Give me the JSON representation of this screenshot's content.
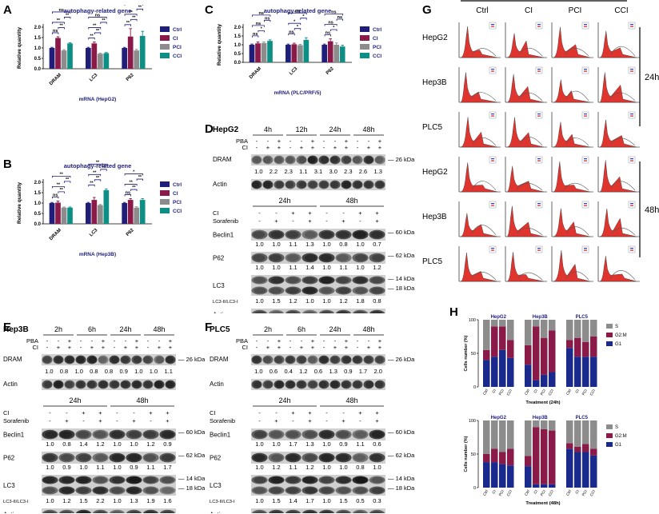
{
  "colors": {
    "ctrl": "#1f1f7a",
    "ci": "#8a1a48",
    "pci": "#8c8c8c",
    "cci": "#0e8f86",
    "bracket": "#1f1f7a",
    "flow_fill": "#e0342e",
    "s": "#8c8c8c",
    "g2m": "#8a1a48",
    "g1": "#1a2a8c"
  },
  "panel_labels": {
    "A": "A",
    "B": "B",
    "C": "C",
    "D": "D",
    "E": "E",
    "F": "F",
    "G": "G",
    "H": "H"
  },
  "legend": [
    "Ctrl",
    "CI",
    "PCI",
    "CCI"
  ],
  "bar_charts": [
    {
      "id": "A",
      "title": "autophagy-related gene",
      "ylabel": "Relative quantity",
      "xlabel": "mRNA (HepG2)",
      "ylim": [
        0,
        2.0
      ],
      "yticks": [
        "0.0",
        "0.5",
        "1.0",
        "1.5",
        "2.0"
      ],
      "categories": [
        "DRAM",
        "LC3",
        "P62"
      ],
      "series": [
        {
          "name": "Ctrl",
          "values": [
            1.0,
            1.0,
            1.0
          ]
        },
        {
          "name": "CI",
          "values": [
            1.48,
            1.22,
            1.55
          ]
        },
        {
          "name": "PCI",
          "values": [
            0.88,
            0.72,
            0.88
          ]
        },
        {
          "name": "CCI",
          "values": [
            1.22,
            0.75,
            1.58
          ]
        }
      ],
      "errors": [
        [
          0.03,
          0.03,
          0.03
        ],
        [
          0.06,
          0.07,
          0.38
        ],
        [
          0.04,
          0.03,
          0.05
        ],
        [
          0.03,
          0.03,
          0.22
        ]
      ],
      "sig": [
        [
          "ns",
          "**",
          "**",
          "**",
          "ns"
        ],
        [
          "**",
          "**",
          "**",
          "**",
          "ns"
        ],
        [
          "**",
          "**",
          "**",
          "**",
          "ns"
        ]
      ]
    },
    {
      "id": "B",
      "title": "autophagy-related gene",
      "ylabel": "Relative quantity",
      "xlabel": "mRNA (Hep3B)",
      "ylim": [
        0,
        2.0
      ],
      "yticks": [
        "0.0",
        "0.5",
        "1.0",
        "1.5",
        "2.0"
      ],
      "categories": [
        "DRAM",
        "LC3",
        "P62"
      ],
      "series": [
        {
          "name": "Ctrl",
          "values": [
            1.0,
            1.0,
            1.0
          ]
        },
        {
          "name": "CI",
          "values": [
            1.02,
            1.15,
            1.15
          ]
        },
        {
          "name": "PCI",
          "values": [
            0.78,
            0.9,
            0.78
          ]
        },
        {
          "name": "CCI",
          "values": [
            0.78,
            1.62,
            1.15
          ]
        }
      ],
      "errors": [
        [
          0.03,
          0.03,
          0.03
        ],
        [
          0.08,
          0.12,
          0.06
        ],
        [
          0.03,
          0.03,
          0.04
        ],
        [
          0.03,
          0.06,
          0.06
        ]
      ],
      "sig": [
        [
          "ns",
          "**",
          "**",
          "**",
          "**"
        ],
        [
          "**",
          "**",
          "**",
          "**",
          "**"
        ],
        [
          "ns",
          "**",
          "**",
          "**",
          "*"
        ]
      ]
    },
    {
      "id": "C",
      "title": "autophagy-related gene",
      "ylabel": "Relative quantity",
      "xlabel": "mRNA (PLC/PRF/5)",
      "ylim": [
        0,
        2.0
      ],
      "yticks": [
        "0.0",
        "0.5",
        "1.0",
        "1.5",
        "2.0"
      ],
      "categories": [
        "DRAM",
        "LC3",
        "P62"
      ],
      "series": [
        {
          "name": "Ctrl",
          "values": [
            1.0,
            1.0,
            1.0
          ]
        },
        {
          "name": "CI",
          "values": [
            1.08,
            1.03,
            1.2
          ]
        },
        {
          "name": "PCI",
          "values": [
            1.1,
            0.98,
            1.0
          ]
        },
        {
          "name": "CCI",
          "values": [
            1.22,
            1.28,
            0.9
          ]
        }
      ],
      "errors": [
        [
          0.04,
          0.04,
          0.04
        ],
        [
          0.08,
          0.06,
          0.14
        ],
        [
          0.06,
          0.05,
          0.1
        ],
        [
          0.06,
          0.12,
          0.08
        ]
      ],
      "sig": [
        [
          "ns",
          "*",
          "ns",
          "ns",
          "ns"
        ],
        [
          "ns",
          "*",
          "*",
          "*",
          "ns"
        ],
        [
          "ns",
          "*",
          "ns",
          "ns",
          "ns"
        ]
      ]
    }
  ],
  "blots": [
    {
      "id": "D",
      "cell": "HepG2",
      "top": {
        "times": [
          "4h",
          "12h",
          "24h",
          "48h"
        ],
        "row1_label": "PBA",
        "row2_label": "CI",
        "pba": [
          "-",
          "-",
          "+",
          "-",
          "-",
          "+",
          "-",
          "-",
          "+",
          "-",
          "-",
          "+"
        ],
        "ci": [
          "-",
          "+",
          "+",
          "-",
          "+",
          "+",
          "-",
          "+",
          "+",
          "-",
          "+",
          "+"
        ],
        "bands": [
          {
            "label": "DRAM",
            "marker": "26 kDa",
            "quant": [
              "1.0",
              "2.2",
              "2.3",
              "1.1",
              "3.1",
              "3.0",
              "2.3",
              "2.6",
              "1.3"
            ]
          },
          {
            "label": "Actin",
            "marker": "",
            "quant": []
          }
        ]
      },
      "bottom": {
        "times": [
          "24h",
          "48h"
        ],
        "row1_label": "CI",
        "row2_label": "Sorafenib",
        "r1": [
          "-",
          "-",
          "+",
          "+",
          "-",
          "-",
          "+",
          "+"
        ],
        "r2": [
          "-",
          "+",
          "-",
          "+",
          "-",
          "+",
          "-",
          "+"
        ],
        "bands": [
          {
            "label": "Beclin1",
            "marker": "60 kDa",
            "quant": [
              "1.0",
              "1.0",
              "1.1",
              "1.3",
              "1.0",
              "0.8",
              "1.0",
              "0.7"
            ]
          },
          {
            "label": "P62",
            "marker": "62 kDa",
            "quant": [
              "1.0",
              "1.0",
              "1.1",
              "1.4",
              "1.0",
              "1.1",
              "1.0",
              "1.2"
            ]
          },
          {
            "label": "LC3",
            "marker": "14 kDa",
            "marker2": "18 kDa",
            "quant": []
          },
          {
            "label": "LC3-II/LC3-I",
            "marker": "",
            "quant": [
              "1.0",
              "1.5",
              "1.2",
              "1.0",
              "1.0",
              "1.2",
              "1.8",
              "0.8"
            ]
          },
          {
            "label": "Actin",
            "marker": "",
            "quant": []
          }
        ]
      }
    },
    {
      "id": "E",
      "cell": "Hep3B",
      "top": {
        "times": [
          "2h",
          "6h",
          "24h",
          "48h"
        ],
        "row1_label": "PBA",
        "row2_label": "CI",
        "pba": [
          "-",
          "-",
          "+",
          "-",
          "-",
          "+",
          "-",
          "-",
          "+",
          "-",
          "-",
          "+"
        ],
        "ci": [
          "-",
          "+",
          "+",
          "-",
          "+",
          "+",
          "-",
          "+",
          "+",
          "-",
          "+",
          "+"
        ],
        "bands": [
          {
            "label": "DRAM",
            "marker": "26 kDa",
            "quant": [
              "1.0",
              "0.8",
              "1.0",
              "0.8",
              "0.8",
              "0.9",
              "1.0",
              "1.0",
              "1.1"
            ]
          },
          {
            "label": "Actin",
            "marker": "",
            "quant": []
          }
        ]
      },
      "bottom": {
        "times": [
          "24h",
          "48h"
        ],
        "row1_label": "CI",
        "row2_label": "Sorafenib",
        "r1": [
          "-",
          "-",
          "+",
          "+",
          "-",
          "-",
          "+",
          "+"
        ],
        "r2": [
          "-",
          "+",
          "-",
          "+",
          "-",
          "+",
          "-",
          "+"
        ],
        "bands": [
          {
            "label": "Beclin1",
            "marker": "60 kDa",
            "quant": [
              "1.0",
              "0.8",
              "1.4",
              "1.2",
              "1.0",
              "1.0",
              "1.2",
              "0.9"
            ]
          },
          {
            "label": "P62",
            "marker": "62 kDa",
            "quant": [
              "1.0",
              "0.9",
              "1.0",
              "1.1",
              "1.0",
              "0.9",
              "1.1",
              "1.7"
            ]
          },
          {
            "label": "LC3",
            "marker": "14 kDa",
            "marker2": "18 kDa",
            "quant": []
          },
          {
            "label": "LC3-II/LC3-I",
            "marker": "",
            "quant": [
              "1.0",
              "1.2",
              "1.5",
              "2.2",
              "1.0",
              "1.3",
              "1.9",
              "1.6"
            ]
          },
          {
            "label": "Actin",
            "marker": "",
            "quant": []
          }
        ]
      }
    },
    {
      "id": "F",
      "cell": "PLC5",
      "top": {
        "times": [
          "2h",
          "6h",
          "24h",
          "48h"
        ],
        "row1_label": "PBA",
        "row2_label": "CI",
        "pba": [
          "-",
          "-",
          "+",
          "-",
          "-",
          "+",
          "-",
          "-",
          "+",
          "-",
          "-",
          "+"
        ],
        "ci": [
          "-",
          "+",
          "+",
          "-",
          "+",
          "+",
          "-",
          "+",
          "+",
          "-",
          "+",
          "+"
        ],
        "bands": [
          {
            "label": "DRAM",
            "marker": "26 kDa",
            "quant": [
              "1.0",
              "0.6",
              "0.4",
              "1.2",
              "0.6",
              "1.3",
              "0.9",
              "1.7",
              "2.0"
            ]
          },
          {
            "label": "Actin",
            "marker": "",
            "quant": []
          }
        ]
      },
      "bottom": {
        "times": [
          "24h",
          "48h"
        ],
        "row1_label": "CI",
        "row2_label": "Sorafenib",
        "r1": [
          "-",
          "-",
          "+",
          "+",
          "-",
          "-",
          "+",
          "+"
        ],
        "r2": [
          "-",
          "+",
          "-",
          "+",
          "-",
          "+",
          "-",
          "+"
        ],
        "bands": [
          {
            "label": "Beclin1",
            "marker": "60 kDa",
            "quant": [
              "1.0",
              "1.0",
              "1.7",
              "1.3",
              "1.0",
              "0.9",
              "1.1",
              "0.6"
            ]
          },
          {
            "label": "P62",
            "marker": "62 kDa",
            "quant": [
              "1.0",
              "1.2",
              "1.1",
              "1.2",
              "1.0",
              "1.0",
              "0.8",
              "1.0"
            ]
          },
          {
            "label": "LC3",
            "marker": "14 kDa",
            "marker2": "18 kDa",
            "quant": []
          },
          {
            "label": "LC3-II/LC3-I",
            "marker": "",
            "quant": [
              "1.0",
              "1.5",
              "1.4",
              "1.7",
              "1.0",
              "1.5",
              "0.5",
              "0.3"
            ]
          },
          {
            "label": "Actin",
            "marker": "",
            "quant": []
          }
        ]
      }
    }
  ],
  "flow": {
    "columns": [
      "Ctrl",
      "CI",
      "PCI",
      "CCI"
    ],
    "rows": [
      "HepG2",
      "Hep3B",
      "PLC5",
      "HepG2",
      "Hep3B",
      "PLC5"
    ],
    "groups": [
      "24h",
      "48h"
    ]
  },
  "chart_data": [
    {
      "type": "bar",
      "stacked": true,
      "id": "H-24h",
      "ylabel": "Cells number (%)",
      "xlabel": "Treatment (24h)",
      "ylim": [
        0,
        100
      ],
      "yticks": [
        "0",
        "50",
        "100"
      ],
      "groups": [
        "HepG2",
        "Hep3B",
        "PLC5"
      ],
      "categories": [
        "Ctrl",
        "CI",
        "PCI",
        "CCI"
      ],
      "series": [
        {
          "name": "G1",
          "values": [
            [
              40,
              45,
              55,
              43
            ],
            [
              33,
              10,
              18,
              22
            ],
            [
              58,
              45,
              45,
              45
            ]
          ]
        },
        {
          "name": "G2:M",
          "values": [
            [
              15,
              45,
              35,
              27
            ],
            [
              29,
              80,
              55,
              62
            ],
            [
              12,
              28,
              22,
              30
            ]
          ]
        },
        {
          "name": "S",
          "values": [
            [
              45,
              10,
              10,
              30
            ],
            [
              38,
              10,
              27,
              16
            ],
            [
              30,
              27,
              33,
              25
            ]
          ]
        }
      ]
    },
    {
      "type": "bar",
      "stacked": true,
      "id": "H-48h",
      "ylabel": "Cells number (%)",
      "xlabel": "Treatment (48h)",
      "ylim": [
        0,
        100
      ],
      "yticks": [
        "0",
        "50",
        "100"
      ],
      "groups": [
        "HepG2",
        "Hep3B",
        "PLC5"
      ],
      "categories": [
        "Ctrl",
        "CI",
        "PCI",
        "CCI"
      ],
      "series": [
        {
          "name": "G1",
          "values": [
            [
              38,
              38,
              35,
              33
            ],
            [
              32,
              5,
              5,
              5
            ],
            [
              58,
              53,
              53,
              48
            ]
          ]
        },
        {
          "name": "G2:M",
          "values": [
            [
              12,
              20,
              18,
              25
            ],
            [
              15,
              85,
              82,
              80
            ],
            [
              8,
              8,
              12,
              10
            ]
          ]
        },
        {
          "name": "S",
          "values": [
            [
              50,
              42,
              47,
              42
            ],
            [
              53,
              10,
              13,
              15
            ],
            [
              34,
              39,
              35,
              42
            ]
          ]
        }
      ]
    }
  ],
  "h_legend": [
    "S",
    "G2:M",
    "G1"
  ]
}
